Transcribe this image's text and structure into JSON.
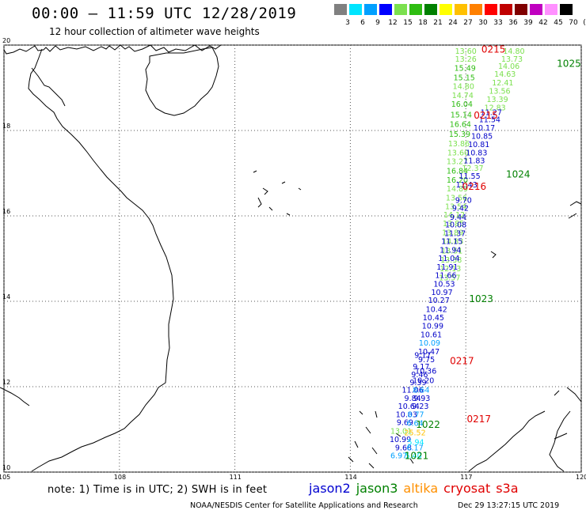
{
  "header": {
    "title": "00:00 – 11:59 UTC 12/28/2019",
    "subtitle": "12 hour collection of altimeter wave heights"
  },
  "legend": {
    "labels": [
      "3",
      "6",
      "9",
      "12",
      "15",
      "18",
      "21",
      "24",
      "27",
      "30",
      "33",
      "36",
      "39",
      "42",
      "45",
      "70",
      "(ft)"
    ],
    "colors": [
      "#808080",
      "#00e5ff",
      "#00a0ff",
      "#0000ff",
      "#7be04e",
      "#2ebd12",
      "#008000",
      "#ffff00",
      "#ffc000",
      "#ff8000",
      "#ff0000",
      "#c00000",
      "#800000",
      "#c000c0",
      "#ff90ff",
      "#000000"
    ]
  },
  "map": {
    "lon_ticks": [
      "105",
      "108",
      "111",
      "114",
      "117",
      "120"
    ],
    "lat_ticks": [
      "20",
      "18",
      "16",
      "14",
      "12",
      "10"
    ],
    "lon_range": [
      105,
      120
    ],
    "lat_range": [
      10,
      20
    ]
  },
  "observations": [
    {
      "v": "13.60",
      "lon": 117.0,
      "lat": 19.8,
      "c": "#7be04e"
    },
    {
      "v": "13.26",
      "lon": 117.0,
      "lat": 19.61,
      "c": "#7be04e"
    },
    {
      "v": "15.49",
      "lon": 116.98,
      "lat": 19.4,
      "c": "#2ebd12"
    },
    {
      "v": "15.15",
      "lon": 116.96,
      "lat": 19.18,
      "c": "#2ebd12"
    },
    {
      "v": "14.80",
      "lon": 116.94,
      "lat": 18.97,
      "c": "#7be04e"
    },
    {
      "v": "14.74",
      "lon": 116.92,
      "lat": 18.76,
      "c": "#7be04e"
    },
    {
      "v": "16.04",
      "lon": 116.9,
      "lat": 18.56,
      "c": "#2ebd12"
    },
    {
      "v": "15.14",
      "lon": 116.88,
      "lat": 18.31,
      "c": "#2ebd12"
    },
    {
      "v": "16.64",
      "lon": 116.86,
      "lat": 18.08,
      "c": "#2ebd12"
    },
    {
      "v": "15.39",
      "lon": 116.84,
      "lat": 17.85,
      "c": "#2ebd12"
    },
    {
      "v": "13.86",
      "lon": 116.82,
      "lat": 17.63,
      "c": "#7be04e"
    },
    {
      "v": "13.60",
      "lon": 116.8,
      "lat": 17.42,
      "c": "#7be04e"
    },
    {
      "v": "13.27",
      "lon": 116.78,
      "lat": 17.21,
      "c": "#7be04e"
    },
    {
      "v": "16.84",
      "lon": 116.78,
      "lat": 16.99,
      "c": "#2ebd12"
    },
    {
      "v": "16.20",
      "lon": 116.78,
      "lat": 16.78,
      "c": "#2ebd12"
    },
    {
      "v": "14.89",
      "lon": 116.78,
      "lat": 16.57,
      "c": "#7be04e"
    },
    {
      "v": "13.56",
      "lon": 116.76,
      "lat": 16.36,
      "c": "#7be04e"
    },
    {
      "v": "13.54",
      "lon": 116.74,
      "lat": 16.16,
      "c": "#7be04e"
    },
    {
      "v": "14.12",
      "lon": 116.7,
      "lat": 15.96,
      "c": "#7be04e"
    },
    {
      "v": "13.85",
      "lon": 116.68,
      "lat": 15.76,
      "c": "#7be04e"
    },
    {
      "v": "13.89",
      "lon": 116.66,
      "lat": 15.55,
      "c": "#7be04e"
    },
    {
      "v": "14.83",
      "lon": 116.66,
      "lat": 15.34,
      "c": "#7be04e"
    },
    {
      "v": "13.51",
      "lon": 116.64,
      "lat": 15.12,
      "c": "#7be04e"
    },
    {
      "v": "13.38",
      "lon": 116.62,
      "lat": 14.91,
      "c": "#7be04e"
    },
    {
      "v": "12.13",
      "lon": 116.6,
      "lat": 14.7,
      "c": "#7be04e"
    },
    {
      "v": "13.57",
      "lon": 116.58,
      "lat": 14.49,
      "c": "#7be04e"
    },
    {
      "v": "14.80",
      "lon": 118.25,
      "lat": 19.8,
      "c": "#7be04e"
    },
    {
      "v": "13.73",
      "lon": 118.2,
      "lat": 19.61,
      "c": "#7be04e"
    },
    {
      "v": "14.06",
      "lon": 118.12,
      "lat": 19.44,
      "c": "#7be04e"
    },
    {
      "v": "14.63",
      "lon": 118.02,
      "lat": 19.26,
      "c": "#7be04e"
    },
    {
      "v": "12.41",
      "lon": 117.96,
      "lat": 19.06,
      "c": "#7be04e"
    },
    {
      "v": "13.56",
      "lon": 117.88,
      "lat": 18.86,
      "c": "#7be04e"
    },
    {
      "v": "13.39",
      "lon": 117.82,
      "lat": 18.67,
      "c": "#7be04e"
    },
    {
      "v": "12.83",
      "lon": 117.76,
      "lat": 18.47,
      "c": "#7be04e"
    },
    {
      "v": "11.27",
      "lon": 117.66,
      "lat": 18.36,
      "c": "#0000c8"
    },
    {
      "v": "11.54",
      "lon": 117.62,
      "lat": 18.19,
      "c": "#0000c8"
    },
    {
      "v": "10.17",
      "lon": 117.48,
      "lat": 18.0,
      "c": "#0000c8"
    },
    {
      "v": "10.85",
      "lon": 117.42,
      "lat": 17.81,
      "c": "#0000c8"
    },
    {
      "v": "10.81",
      "lon": 117.34,
      "lat": 17.61,
      "c": "#0000c8"
    },
    {
      "v": "10.83",
      "lon": 117.28,
      "lat": 17.42,
      "c": "#0000c8"
    },
    {
      "v": "11.83",
      "lon": 117.22,
      "lat": 17.23,
      "c": "#0000c8"
    },
    {
      "v": "12.37",
      "lon": 117.18,
      "lat": 17.06,
      "c": "#7be04e"
    },
    {
      "v": "11.55",
      "lon": 117.1,
      "lat": 16.87,
      "c": "#0000c8"
    },
    {
      "v": "11.43",
      "lon": 117.02,
      "lat": 16.67,
      "c": "#0000c8"
    },
    {
      "v": "9.70",
      "lon": 116.94,
      "lat": 16.31,
      "c": "#0000c8"
    },
    {
      "v": "9.42",
      "lon": 116.86,
      "lat": 16.12,
      "c": "#0000c8"
    },
    {
      "v": "9.44",
      "lon": 116.8,
      "lat": 15.91,
      "c": "#0000c8"
    },
    {
      "v": "10.08",
      "lon": 116.74,
      "lat": 15.73,
      "c": "#0000c8"
    },
    {
      "v": "11.37",
      "lon": 116.72,
      "lat": 15.53,
      "c": "#0000c8"
    },
    {
      "v": "11.15",
      "lon": 116.64,
      "lat": 15.34,
      "c": "#0000c8"
    },
    {
      "v": "11.94",
      "lon": 116.6,
      "lat": 15.14,
      "c": "#0000c8"
    },
    {
      "v": "11.04",
      "lon": 116.56,
      "lat": 14.94,
      "c": "#0000c8"
    },
    {
      "v": "11.91",
      "lon": 116.52,
      "lat": 14.74,
      "c": "#0000c8"
    },
    {
      "v": "11.66",
      "lon": 116.48,
      "lat": 14.55,
      "c": "#0000c8"
    },
    {
      "v": "10.53",
      "lon": 116.44,
      "lat": 14.34,
      "c": "#0000c8"
    },
    {
      "v": "10.97",
      "lon": 116.38,
      "lat": 14.15,
      "c": "#0000c8"
    },
    {
      "v": "10.27",
      "lon": 116.3,
      "lat": 13.96,
      "c": "#0000c8"
    },
    {
      "v": "10.42",
      "lon": 116.24,
      "lat": 13.75,
      "c": "#0000c8"
    },
    {
      "v": "10.45",
      "lon": 116.16,
      "lat": 13.56,
      "c": "#0000c8"
    },
    {
      "v": "10.99",
      "lon": 116.14,
      "lat": 13.36,
      "c": "#0000c8"
    },
    {
      "v": "10.61",
      "lon": 116.1,
      "lat": 13.16,
      "c": "#0000c8"
    },
    {
      "v": "10.09",
      "lon": 116.06,
      "lat": 12.96,
      "c": "#00a0ff"
    },
    {
      "v": "10.47",
      "lon": 116.04,
      "lat": 12.76,
      "c": "#0000c8"
    },
    {
      "v": "9.75",
      "lon": 115.98,
      "lat": 12.57,
      "c": "#0000c8"
    },
    {
      "v": "9.17",
      "lon": 115.88,
      "lat": 12.68,
      "c": "#0000c8"
    },
    {
      "v": "9.17",
      "lon": 115.84,
      "lat": 12.41,
      "c": "#0000c8"
    },
    {
      "v": "10.36",
      "lon": 115.96,
      "lat": 12.31,
      "c": "#0000c8"
    },
    {
      "v": "9.46",
      "lon": 115.8,
      "lat": 12.22,
      "c": "#0000c8"
    },
    {
      "v": "10.20",
      "lon": 115.9,
      "lat": 12.08,
      "c": "#0000c8"
    },
    {
      "v": "9.39",
      "lon": 115.76,
      "lat": 12.04,
      "c": "#0000c8"
    },
    {
      "v": "11.06",
      "lon": 115.62,
      "lat": 11.86,
      "c": "#0000c8"
    },
    {
      "v": "8.64",
      "lon": 115.84,
      "lat": 11.86,
      "c": "#00a0ff"
    },
    {
      "v": "9.84",
      "lon": 115.62,
      "lat": 11.67,
      "c": "#0000c8"
    },
    {
      "v": "9.93",
      "lon": 115.86,
      "lat": 11.67,
      "c": "#0000c8"
    },
    {
      "v": "10.64",
      "lon": 115.52,
      "lat": 11.48,
      "c": "#0000c8"
    },
    {
      "v": "9.23",
      "lon": 115.82,
      "lat": 11.48,
      "c": "#0000c8"
    },
    {
      "v": "10.03",
      "lon": 115.46,
      "lat": 11.29,
      "c": "#0000c8"
    },
    {
      "v": "8.77",
      "lon": 115.7,
      "lat": 11.29,
      "c": "#00a0ff"
    },
    {
      "v": "9.69",
      "lon": 115.42,
      "lat": 11.1,
      "c": "#0000c8"
    },
    {
      "v": "6.64",
      "lon": 115.68,
      "lat": 11.08,
      "c": "#00a0ff"
    },
    {
      "v": "13.01",
      "lon": 115.32,
      "lat": 10.9,
      "c": "#7be04e"
    },
    {
      "v": "25.52",
      "lon": 115.68,
      "lat": 10.86,
      "c": "#ffc000"
    },
    {
      "v": "10.99",
      "lon": 115.3,
      "lat": 10.7,
      "c": "#0000c8"
    },
    {
      "v": "5.94",
      "lon": 115.7,
      "lat": 10.64,
      "c": "#00e5ff"
    },
    {
      "v": "9.68",
      "lon": 115.38,
      "lat": 10.51,
      "c": "#0000c8"
    },
    {
      "v": "6.17",
      "lon": 115.68,
      "lat": 10.51,
      "c": "#00a0ff"
    },
    {
      "v": "6.97",
      "lon": 115.26,
      "lat": 10.32,
      "c": "#00a0ff"
    },
    {
      "v": "5.40",
      "lon": 115.64,
      "lat": 10.32,
      "c": "#00e5ff"
    }
  ],
  "time_labels": [
    {
      "t": "0215",
      "lon": 117.72,
      "lat": 19.82,
      "c": "#e00000"
    },
    {
      "t": "1025",
      "lon": 119.68,
      "lat": 19.49,
      "c": "#008000"
    },
    {
      "t": "0215",
      "lon": 117.52,
      "lat": 18.28,
      "c": "#e00000"
    },
    {
      "t": "1024",
      "lon": 118.36,
      "lat": 16.9,
      "c": "#008000"
    },
    {
      "t": "0216",
      "lon": 117.22,
      "lat": 16.61,
      "c": "#e00000"
    },
    {
      "t": "1023",
      "lon": 117.4,
      "lat": 13.98,
      "c": "#008000"
    },
    {
      "t": "0217",
      "lon": 116.9,
      "lat": 12.53,
      "c": "#e00000"
    },
    {
      "t": "0217",
      "lon": 117.34,
      "lat": 11.17,
      "c": "#e00000"
    },
    {
      "t": "1022",
      "lon": 116.02,
      "lat": 11.04,
      "c": "#008000"
    },
    {
      "t": "1021",
      "lon": 115.72,
      "lat": 10.31,
      "c": "#008000"
    }
  ],
  "note": "note: 1) Time is in UTC; 2) SWH is in feet",
  "satellites": [
    {
      "name": "jason2",
      "color": "#0000d0"
    },
    {
      "name": "jason3",
      "color": "#008000"
    },
    {
      "name": "altika",
      "color": "#ff9000"
    },
    {
      "name": "cryosat",
      "color": "#e00000"
    },
    {
      "name": "s3a",
      "color": "#e00000"
    }
  ],
  "footer": {
    "credit": "NOAA/NESDIS Center for Satellite Applications and Research",
    "timestamp": "Dec 29 13:27:15 UTC 2019"
  }
}
